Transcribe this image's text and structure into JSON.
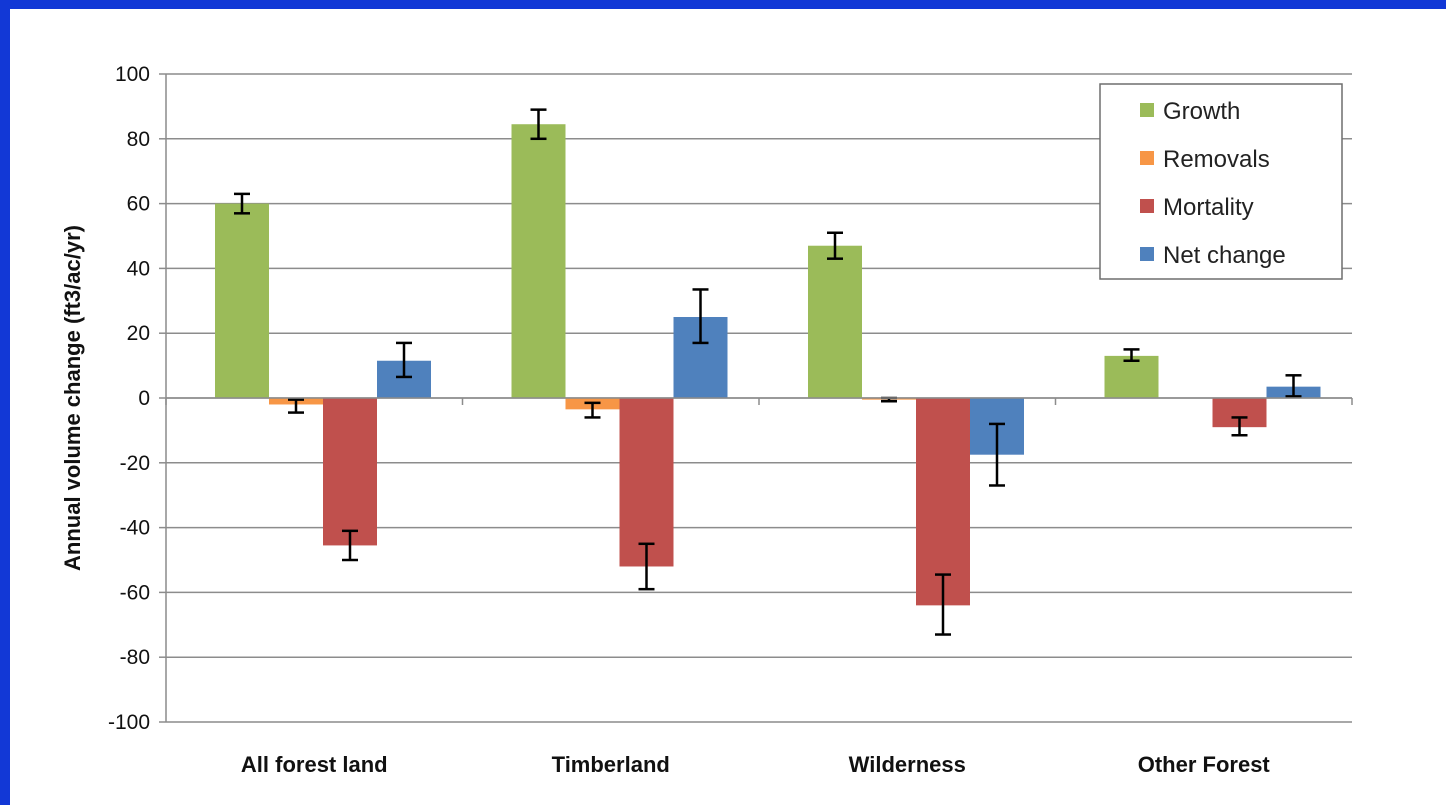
{
  "chart_data": {
    "type": "bar",
    "title": "",
    "xlabel": "",
    "ylabel": "Annual volume change (ft3/ac/yr)",
    "ylim": [
      -100,
      100
    ],
    "yticks": [
      100,
      80,
      60,
      40,
      20,
      0,
      -20,
      -40,
      -60,
      -80,
      -100
    ],
    "ytick_labels": [
      "100",
      "80",
      "60",
      "40",
      "20",
      "0",
      "-20",
      "-40",
      "-60",
      "-80",
      "-100"
    ],
    "grid": true,
    "legend_position": "top-right",
    "categories": [
      "All forest land",
      "Timberland",
      "Wilderness",
      "Other Forest"
    ],
    "series": [
      {
        "name": "Growth",
        "color": "#9bbb59",
        "values": [
          60,
          84.5,
          47,
          13
        ],
        "err_low": [
          57,
          80,
          43,
          11.5
        ],
        "err_high": [
          63,
          89,
          51,
          15
        ]
      },
      {
        "name": "Removals",
        "color": "#f79646",
        "values": [
          -2,
          -3.5,
          -0.5,
          0
        ],
        "err_low": [
          -4.5,
          -6,
          -1,
          0
        ],
        "err_high": [
          -0.5,
          -1.5,
          0,
          0
        ]
      },
      {
        "name": "Mortality",
        "color": "#c0504d",
        "values": [
          -45.5,
          -52,
          -64,
          -9
        ],
        "err_low": [
          -50,
          -59,
          -73,
          -11.5
        ],
        "err_high": [
          -41,
          -45,
          -54.5,
          -6
        ]
      },
      {
        "name": "Net change",
        "color": "#4f81bd",
        "values": [
          11.5,
          25,
          -17.5,
          3.5
        ],
        "err_low": [
          6.5,
          17,
          -27,
          0.5
        ],
        "err_high": [
          17,
          33.5,
          -8,
          7
        ]
      }
    ]
  }
}
